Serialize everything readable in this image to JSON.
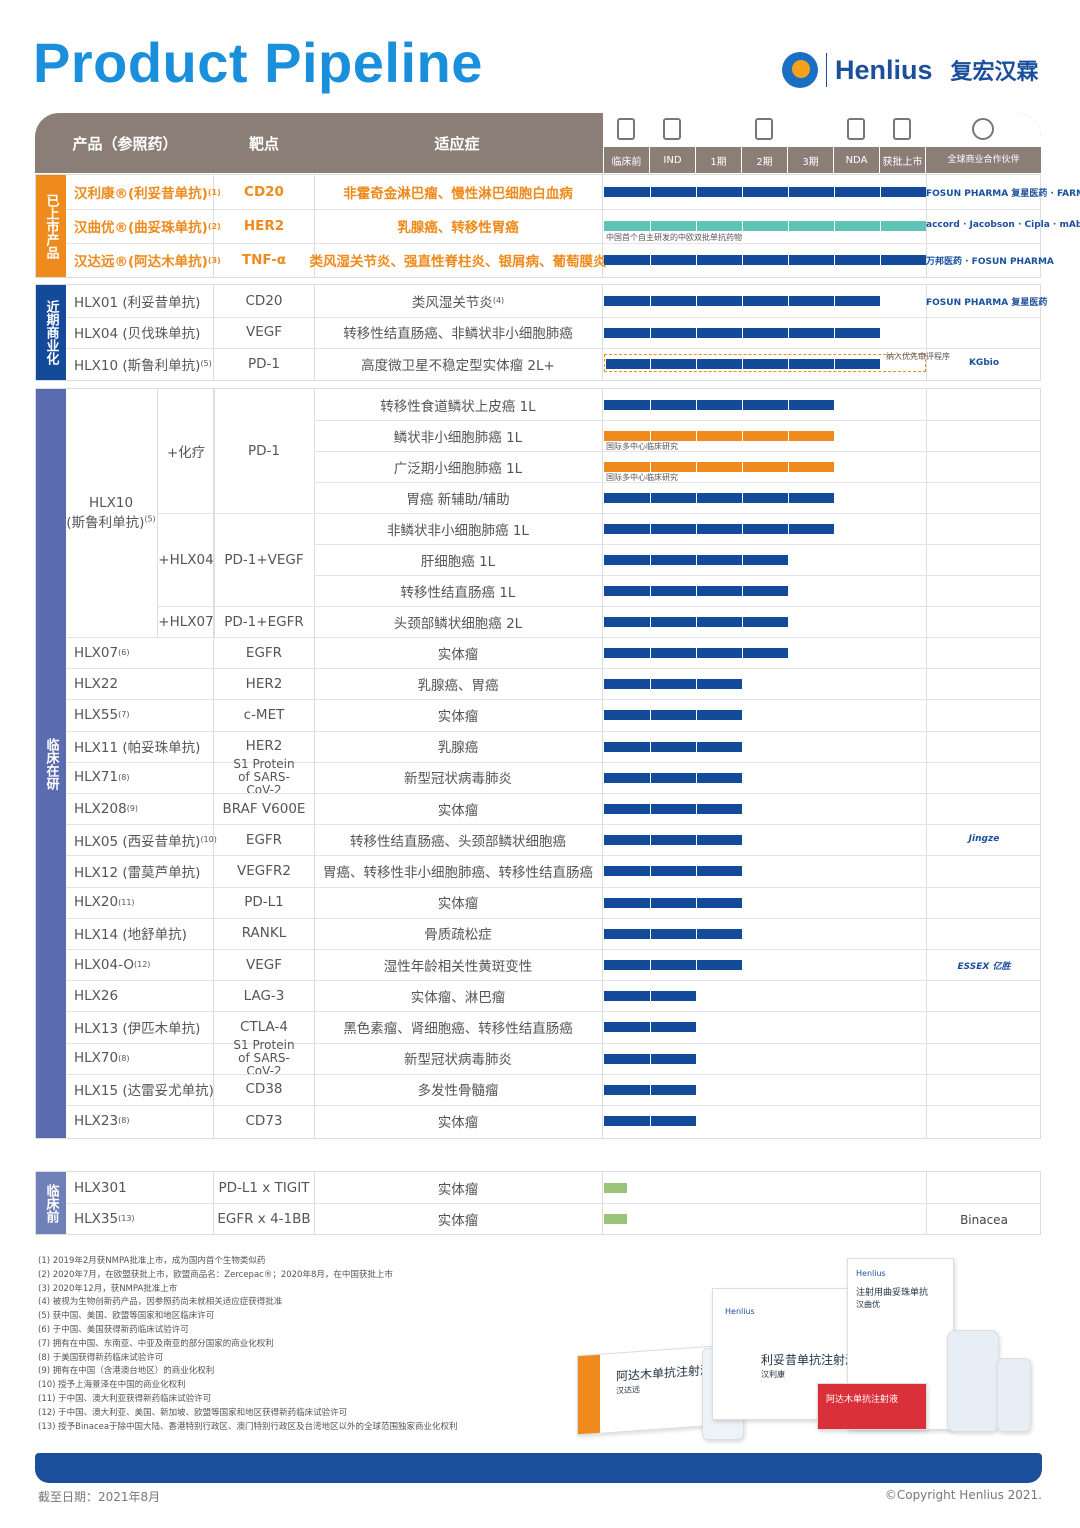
{
  "title": "Product Pipeline",
  "logo": {
    "en": "Henlius",
    "cn": "复宏汉霖"
  },
  "header": {
    "product": "产品（参照药）",
    "target": "靶点",
    "indication": "适应症",
    "stages": [
      "临床前",
      "IND",
      "1期",
      "2期",
      "3期",
      "NDA",
      "获批上市"
    ],
    "partner": "全球商业合作伙伴"
  },
  "colors": {
    "navy": "#134b9a",
    "orange": "#ef8a1c",
    "teal": "#5ec5b6",
    "green": "#9ac47a",
    "tab_orange": "#ef8a1c",
    "tab_navy": "#134b9a",
    "tab_purple": "#5a6bb0",
    "tab_slate": "#6f7fb8"
  },
  "sections": {
    "marketed": {
      "label": "已上市产品"
    },
    "near": {
      "label": "近期商业化"
    },
    "clinical": {
      "label": "临床在研"
    },
    "preclinical": {
      "label": "临床前"
    }
  },
  "marketed": [
    {
      "product": "汉利康®(利妥昔单抗)",
      "note": "(1)",
      "target": "CD20",
      "indication": "非霍奇金淋巴瘤、慢性淋巴细胞白血病",
      "stage": 7,
      "color": "navy",
      "partner": "FOSUN PHARMA 复星医药 · FARMA"
    },
    {
      "product": "汉曲优®(曲妥珠单抗)",
      "note": "(2)",
      "target": "HER2",
      "indication": "乳腺癌、转移性胃癌",
      "stage": 7,
      "color": "teal",
      "bar_note": "中国首个自主研发的中欧双批单抗药物",
      "partner": "accord · Jacobson · Cipla · mAbxience"
    },
    {
      "product": "汉达远®(阿达木单抗)",
      "note": "(3)",
      "target": "TNF-α",
      "indication": "类风湿关节炎、强直性脊柱炎、银屑病、葡萄膜炎",
      "stage": 7,
      "color": "navy",
      "partner": "万邦医药 · FOSUN PHARMA"
    }
  ],
  "near": [
    {
      "product": "HLX01 (利妥昔单抗)",
      "target": "CD20",
      "indication": "类风湿关节炎",
      "ind_note": "(4)",
      "stage": 6,
      "color": "navy",
      "partner": "FOSUN PHARMA 复星医药"
    },
    {
      "product": "HLX04 (贝伐珠单抗)",
      "target": "VEGF",
      "indication": "转移性结直肠癌、非鳞状非小细胞肺癌",
      "stage": 6,
      "color": "navy",
      "partner": ""
    },
    {
      "product": "HLX10 (斯鲁利单抗)",
      "note": "(5)",
      "target": "PD-1",
      "indication": "高度微卫星不稳定型实体瘤 2L+",
      "stage": 6,
      "color": "dashed",
      "bar_note": "纳入优先审评程序",
      "partner": "KGbio"
    }
  ],
  "clinical_group": {
    "product": "HLX10",
    "product2": "(斯鲁利单抗)",
    "note": "(5)",
    "combos": [
      {
        "combo": "+化疗",
        "target": "PD-1"
      },
      {
        "combo": "+HLX04",
        "target": "PD-1+VEGF"
      },
      {
        "combo": "+HLX07",
        "target": "PD-1+EGFR"
      }
    ],
    "rows": [
      {
        "indication": "转移性食道鳞状上皮癌 1L",
        "stage": 5,
        "color": "navy"
      },
      {
        "indication": "鳞状非小细胞肺癌 1L",
        "stage": 5,
        "color": "orange",
        "bar_note": "国际多中心临床研究"
      },
      {
        "indication": "广泛期小细胞肺癌 1L",
        "stage": 5,
        "color": "orange",
        "bar_note": "国际多中心临床研究"
      },
      {
        "indication": "胃癌 新辅助/辅助",
        "stage": 5,
        "color": "navy"
      },
      {
        "indication": "非鳞状非小细胞肺癌 1L",
        "stage": 5,
        "color": "navy"
      },
      {
        "indication": "肝细胞癌 1L",
        "stage": 4,
        "color": "navy"
      },
      {
        "indication": "转移性结直肠癌 1L",
        "stage": 4,
        "color": "navy"
      },
      {
        "indication": "头颈部鳞状细胞癌 2L",
        "stage": 4,
        "color": "navy"
      }
    ]
  },
  "clinical": [
    {
      "product": "HLX07",
      "note": "(6)",
      "target": "EGFR",
      "indication": "实体瘤",
      "stage": 4,
      "partner": ""
    },
    {
      "product": "HLX22",
      "note": "",
      "target": "HER2",
      "indication": "乳腺癌、胃癌",
      "stage": 3,
      "partner": ""
    },
    {
      "product": "HLX55",
      "note": "(7)",
      "target": "c-MET",
      "indication": "实体瘤",
      "stage": 3,
      "partner": ""
    },
    {
      "product": "HLX11 (帕妥珠单抗)",
      "note": "",
      "target": "HER2",
      "indication": "乳腺癌",
      "stage": 3,
      "partner": ""
    },
    {
      "product": "HLX71",
      "note": "(8)",
      "target": "S1 Protein of SARS-CoV-2",
      "indication": "新型冠状病毒肺炎",
      "stage": 3,
      "partner": ""
    },
    {
      "product": "HLX208",
      "note": "(9)",
      "target": "BRAF V600E",
      "indication": "实体瘤",
      "stage": 3,
      "partner": ""
    },
    {
      "product": "HLX05 (西妥昔单抗)",
      "note": "(10)",
      "target": "EGFR",
      "indication": "转移性结直肠癌、头颈部鳞状细胞癌",
      "stage": 3,
      "partner": "Jingze"
    },
    {
      "product": "HLX12 (雷莫芦单抗)",
      "note": "",
      "target": "VEGFR2",
      "indication": "胃癌、转移性非小细胞肺癌、转移性结直肠癌",
      "stage": 3,
      "partner": ""
    },
    {
      "product": "HLX20",
      "note": "(11)",
      "target": "PD-L1",
      "indication": "实体瘤",
      "stage": 3,
      "partner": ""
    },
    {
      "product": "HLX14 (地舒单抗)",
      "note": "",
      "target": "RANKL",
      "indication": "骨质疏松症",
      "stage": 3,
      "partner": ""
    },
    {
      "product": "HLX04-O",
      "note": "(12)",
      "target": "VEGF",
      "indication": "湿性年龄相关性黄斑变性",
      "stage": 3,
      "partner": "ESSEX 亿胜"
    },
    {
      "product": "HLX26",
      "note": "",
      "target": "LAG-3",
      "indication": "实体瘤、淋巴瘤",
      "stage": 2,
      "partner": ""
    },
    {
      "product": "HLX13 (伊匹木单抗)",
      "note": "",
      "target": "CTLA-4",
      "indication": "黑色素瘤、肾细胞癌、转移性结直肠癌",
      "stage": 2,
      "partner": ""
    },
    {
      "product": "HLX70",
      "note": "(8)",
      "target": "S1 Protein of SARS-CoV-2",
      "indication": "新型冠状病毒肺炎",
      "stage": 2,
      "partner": ""
    },
    {
      "product": "HLX15 (达雷妥尤单抗)",
      "note": "",
      "target": "CD38",
      "indication": "多发性骨髓瘤",
      "stage": 2,
      "partner": ""
    },
    {
      "product": "HLX23",
      "note": "(8)",
      "target": "CD73",
      "indication": "实体瘤",
      "stage": 2,
      "partner": ""
    }
  ],
  "preclinical": [
    {
      "product": "HLX301",
      "note": "",
      "target": "PD-L1 x TIGIT",
      "indication": "实体瘤",
      "stage": 0.5,
      "partner": ""
    },
    {
      "product": "HLX35",
      "note": "(13)",
      "target": "EGFR x 4-1BB",
      "indication": "实体瘤",
      "stage": 0.5,
      "partner": "Binacea"
    }
  ],
  "footnotes": [
    "(1) 2019年2月获NMPA批准上市，成为国内首个生物类似药",
    "(2) 2020年7月，在欧盟获批上市，欧盟商品名：Zercepac®；2020年8月，在中国获批上市",
    "(3) 2020年12月，获NMPA批准上市",
    "(4) 被视为生物创新药产品，因参照药尚未就相关适应症获得批准",
    "(5) 获中国、美国、欧盟等国家和地区临床许可",
    "(6) 于中国、美国获得新药临床试验许可",
    "(7) 拥有在中国、东南亚、中亚及南亚的部分国家的商业化权利",
    "(8) 于美国获得新药临床试验许可",
    "(9) 拥有在中国（含港澳台地区）的商业化权利",
    "(10) 授予上海景泽在中国的商业化权利",
    "(11) 于中国、澳大利亚获得新药临床试验许可",
    "(12) 于中国、澳大利亚、美国、新加坡、欧盟等国家和地区获得新药临床试验许可",
    "(13) 授予Binacea于除中国大陆、香港特别行政区、澳门特别行政区及台湾地区以外的全球范围独家商业化权利"
  ],
  "product_labels": {
    "box1": "阿达木单抗注射液",
    "box1b": "汉达远",
    "box2": "利妥昔单抗注射液",
    "box2b": "汉利康",
    "box3": "注射用曲妥珠单抗",
    "box3b": "汉曲优",
    "box4": "阿达木单抗注射液",
    "brand": "Henlius",
    "fosun": "FOSUN PHARMA"
  },
  "date": "截至日期：2021年8月",
  "copyright": "©Copyright Henlius 2021."
}
